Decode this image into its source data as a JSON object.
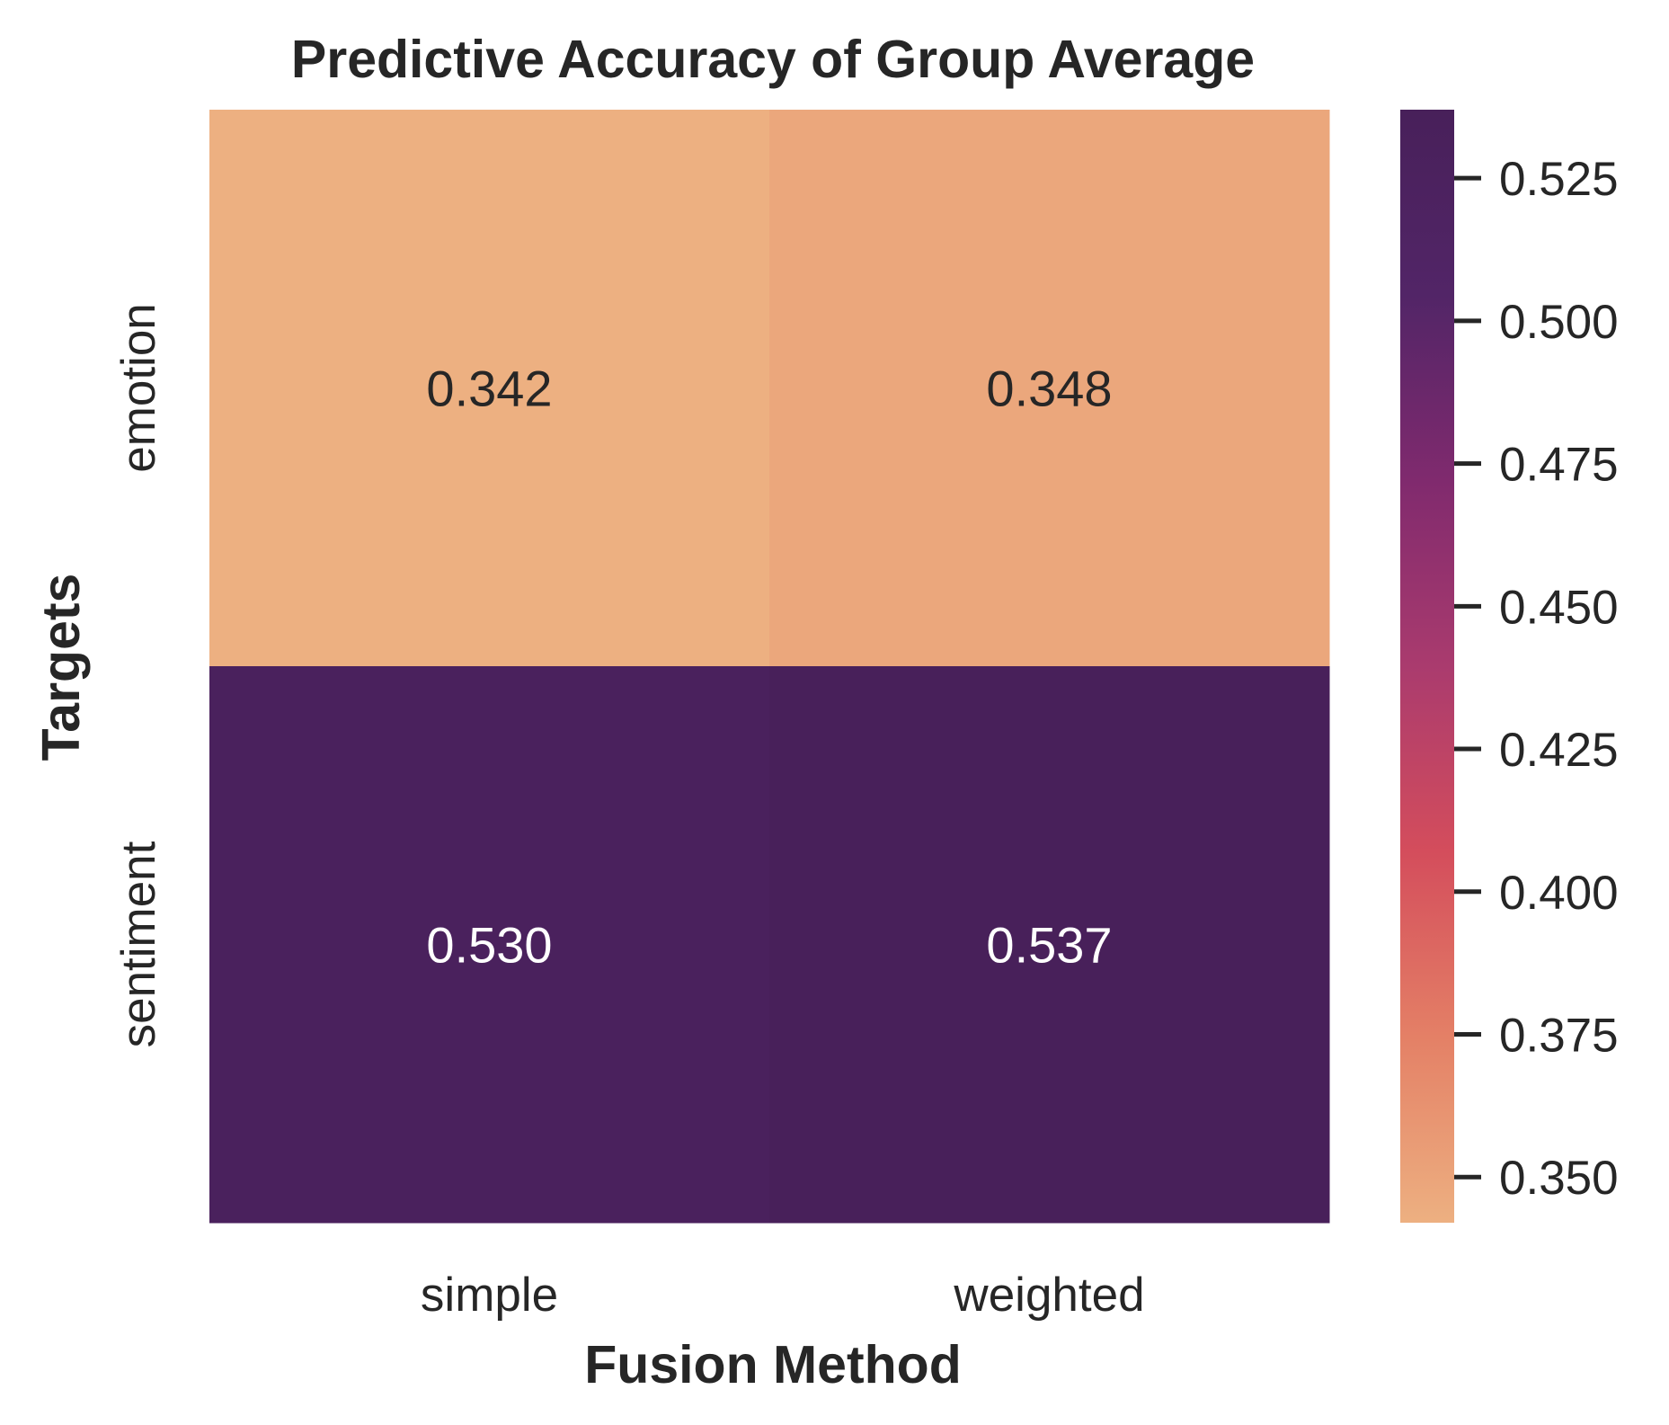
{
  "chart_data": {
    "type": "heatmap",
    "title": "Predictive Accuracy of Group Average",
    "xlabel": "Fusion Method",
    "ylabel": "Targets",
    "x_categories": [
      "simple",
      "weighted"
    ],
    "y_categories": [
      "emotion",
      "sentiment"
    ],
    "values": [
      [
        0.342,
        0.348
      ],
      [
        0.53,
        0.537
      ]
    ],
    "value_labels": [
      [
        "0.342",
        "0.348"
      ],
      [
        "0.530",
        "0.537"
      ]
    ],
    "colorbar": {
      "range": [
        0.342,
        0.537
      ],
      "ticks": [
        0.35,
        0.375,
        0.4,
        0.425,
        0.45,
        0.475,
        0.5,
        0.525
      ],
      "tick_labels": [
        "0.350",
        "0.375",
        "0.400",
        "0.425",
        "0.450",
        "0.475",
        "0.500",
        "0.525"
      ],
      "colormap": "flare",
      "stops": [
        "#edb081",
        "#e48066",
        "#d44d5c",
        "#aa3b6e",
        "#802a6e",
        "#522567",
        "#48205a"
      ]
    },
    "dark_text_color": "#262626",
    "light_text_color": "#ffffff"
  }
}
